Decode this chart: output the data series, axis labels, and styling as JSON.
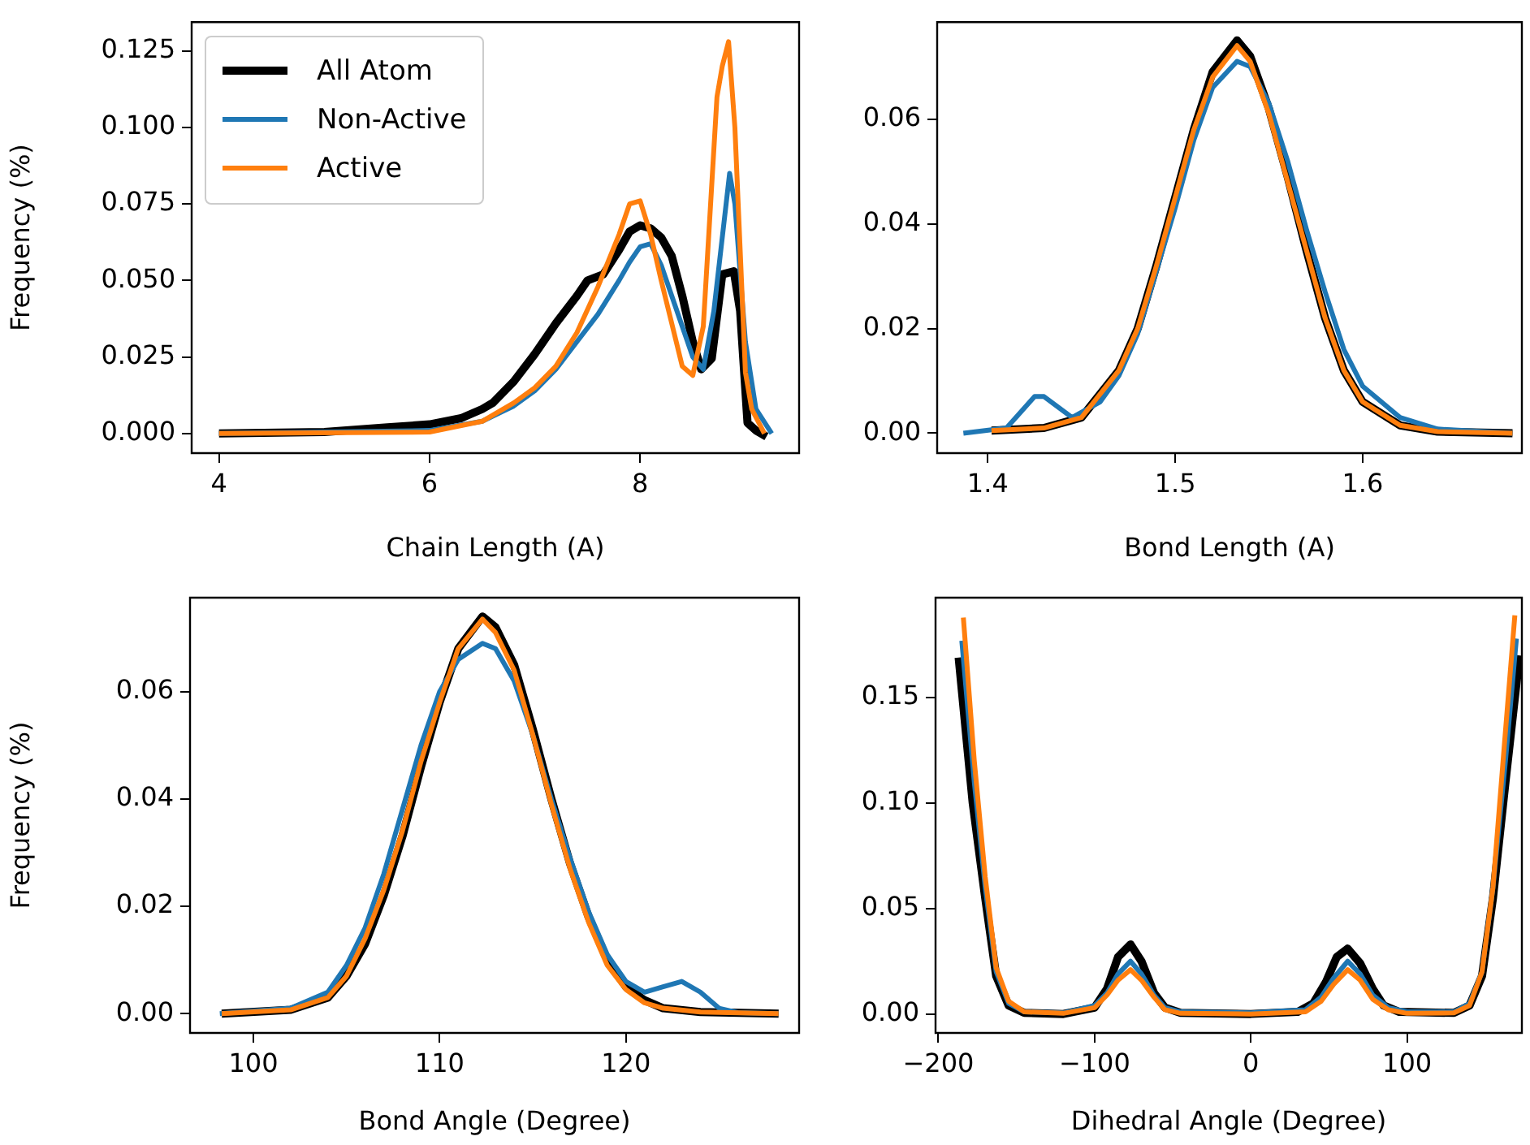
{
  "chart_data": [
    {
      "type": "line",
      "xlabel": "Chain Length (A)",
      "ylabel": "Frequency (%)",
      "legend": "top left",
      "xlim": [
        3.74,
        9.51
      ],
      "ylim": [
        -0.0064,
        0.1344
      ],
      "xticks": [
        4,
        6,
        8
      ],
      "yticks": [
        {
          "value": 0,
          "label": "0.000"
        },
        {
          "value": 0.025,
          "label": "0.025"
        },
        {
          "value": 0.05,
          "label": "0.050"
        },
        {
          "value": 0.075,
          "label": "0.075"
        },
        {
          "value": 0.1,
          "label": "0.100"
        },
        {
          "value": 0.125,
          "label": "0.125"
        }
      ],
      "series": [
        {
          "name": "All Atom",
          "color": "#000000",
          "x": [
            4,
            5,
            5.6,
            6,
            6.3,
            6.5,
            6.6,
            6.8,
            7,
            7.2,
            7.4,
            7.5,
            7.65,
            7.8,
            7.9,
            8,
            8.1,
            8.2,
            8.3,
            8.4,
            8.5,
            8.58,
            8.68,
            8.78,
            8.89,
            8.95,
            9.02,
            9.1,
            9.2
          ],
          "values": [
            0,
            0.0005,
            0.002,
            0.003,
            0.005,
            0.008,
            0.01,
            0.017,
            0.026,
            0.036,
            0.045,
            0.05,
            0.052,
            0.06,
            0.066,
            0.068,
            0.067,
            0.064,
            0.058,
            0.045,
            0.03,
            0.021,
            0.0245,
            0.052,
            0.053,
            0.04,
            0.0035,
            0.001,
            -0.001
          ]
        },
        {
          "name": "Non-Active",
          "color": "#1f77b4",
          "x": [
            4,
            6,
            6.5,
            6.8,
            7,
            7.2,
            7.4,
            7.6,
            7.8,
            7.9,
            8,
            8.1,
            8.2,
            8.3,
            8.4,
            8.5,
            8.6,
            8.7,
            8.8,
            8.85,
            8.9,
            9,
            9.1,
            9.25
          ],
          "values": [
            0,
            0.001,
            0.004,
            0.009,
            0.014,
            0.021,
            0.03,
            0.039,
            0.05,
            0.056,
            0.061,
            0.062,
            0.055,
            0.045,
            0.035,
            0.025,
            0.021,
            0.04,
            0.07,
            0.085,
            0.075,
            0.03,
            0.008,
            0
          ]
        },
        {
          "name": "Active",
          "color": "#ff7f0e",
          "x": [
            4,
            6,
            6.5,
            6.8,
            7,
            7.2,
            7.4,
            7.6,
            7.8,
            7.9,
            8,
            8.1,
            8.2,
            8.3,
            8.4,
            8.5,
            8.6,
            8.73,
            8.78,
            8.84,
            8.9,
            8.95,
            9,
            9.06,
            9.18
          ],
          "values": [
            0,
            0.0005,
            0.004,
            0.01,
            0.015,
            0.022,
            0.033,
            0.048,
            0.065,
            0.075,
            0.076,
            0.065,
            0.05,
            0.036,
            0.022,
            0.019,
            0.035,
            0.11,
            0.12,
            0.128,
            0.1,
            0.06,
            0.02,
            0.008,
            0
          ]
        }
      ]
    },
    {
      "type": "line",
      "xlabel": "Bond Length (A)",
      "xlim": [
        1.373,
        1.685
      ],
      "ylim": [
        -0.0038,
        0.0785
      ],
      "xticks": [
        1.4,
        1.5,
        1.6
      ],
      "yticks": [
        {
          "value": 0,
          "label": "0.00"
        },
        {
          "value": 0.02,
          "label": "0.02"
        },
        {
          "value": 0.04,
          "label": "0.04"
        },
        {
          "value": 0.06,
          "label": "0.06"
        }
      ],
      "series": [
        {
          "color": "#000000",
          "x": [
            1.402,
            1.43,
            1.45,
            1.47,
            1.48,
            1.49,
            1.5,
            1.51,
            1.52,
            1.533,
            1.54,
            1.55,
            1.56,
            1.57,
            1.58,
            1.59,
            1.6,
            1.62,
            1.64,
            1.68
          ],
          "values": [
            0.0005,
            0.001,
            0.003,
            0.012,
            0.02,
            0.032,
            0.045,
            0.058,
            0.069,
            0.075,
            0.072,
            0.062,
            0.049,
            0.035,
            0.022,
            0.012,
            0.006,
            0.0015,
            0.0003,
            0
          ]
        },
        {
          "color": "#1f77b4",
          "x": [
            1.387,
            1.41,
            1.425,
            1.43,
            1.445,
            1.46,
            1.47,
            1.48,
            1.49,
            1.5,
            1.51,
            1.52,
            1.533,
            1.54,
            1.55,
            1.56,
            1.57,
            1.58,
            1.59,
            1.6,
            1.62,
            1.64,
            1.68
          ],
          "values": [
            0,
            0.001,
            0.007,
            0.007,
            0.003,
            0.006,
            0.011,
            0.019,
            0.031,
            0.043,
            0.056,
            0.066,
            0.071,
            0.07,
            0.063,
            0.052,
            0.039,
            0.027,
            0.016,
            0.009,
            0.003,
            0.0008,
            0
          ]
        },
        {
          "color": "#ff7f0e",
          "x": [
            1.402,
            1.43,
            1.45,
            1.47,
            1.48,
            1.49,
            1.5,
            1.51,
            1.52,
            1.533,
            1.54,
            1.55,
            1.56,
            1.57,
            1.58,
            1.59,
            1.6,
            1.62,
            1.64,
            1.68
          ],
          "values": [
            0.0005,
            0.001,
            0.003,
            0.012,
            0.02,
            0.032,
            0.045,
            0.058,
            0.068,
            0.074,
            0.071,
            0.061,
            0.048,
            0.035,
            0.022,
            0.012,
            0.006,
            0.0015,
            0.0003,
            0
          ]
        }
      ]
    },
    {
      "type": "line",
      "xlabel": "Bond Angle (Degree)",
      "ylabel": "Frequency (%)",
      "xlim": [
        96.6,
        129.3
      ],
      "ylim": [
        -0.0036,
        0.0775
      ],
      "xticks": [
        100,
        110,
        120
      ],
      "yticks": [
        {
          "value": 0,
          "label": "0.00"
        },
        {
          "value": 0.02,
          "label": "0.02"
        },
        {
          "value": 0.04,
          "label": "0.04"
        },
        {
          "value": 0.06,
          "label": "0.06"
        }
      ],
      "series": [
        {
          "color": "#000000",
          "x": [
            98.3,
            102,
            104,
            105,
            106,
            107,
            108,
            109,
            110,
            111,
            112.3,
            113,
            114,
            115,
            116,
            117,
            118,
            119,
            120,
            121,
            122,
            124,
            128.2
          ],
          "values": [
            0,
            0.0007,
            0.003,
            0.007,
            0.013,
            0.022,
            0.033,
            0.046,
            0.058,
            0.068,
            0.074,
            0.072,
            0.065,
            0.053,
            0.04,
            0.028,
            0.018,
            0.01,
            0.005,
            0.0025,
            0.001,
            0.0003,
            0
          ]
        },
        {
          "color": "#1f77b4",
          "x": [
            98.2,
            102,
            104,
            105,
            106,
            107,
            108,
            109,
            110,
            111,
            112.3,
            113,
            114,
            115,
            116,
            117,
            118,
            119,
            120,
            121,
            122,
            123,
            124,
            125,
            126,
            128.2
          ],
          "values": [
            0,
            0.001,
            0.004,
            0.009,
            0.016,
            0.026,
            0.038,
            0.05,
            0.06,
            0.066,
            0.069,
            0.068,
            0.062,
            0.052,
            0.04,
            0.029,
            0.019,
            0.011,
            0.006,
            0.004,
            0.005,
            0.006,
            0.004,
            0.001,
            0.0002,
            0
          ]
        },
        {
          "color": "#ff7f0e",
          "x": [
            98.3,
            102,
            104,
            105,
            106,
            107,
            108,
            109,
            110,
            111,
            112.3,
            113,
            114,
            115,
            116,
            117,
            118,
            119,
            120,
            121,
            122,
            124,
            128.2
          ],
          "values": [
            0,
            0.0007,
            0.003,
            0.007,
            0.014,
            0.023,
            0.034,
            0.047,
            0.058,
            0.068,
            0.0735,
            0.071,
            0.064,
            0.052,
            0.039,
            0.027,
            0.017,
            0.009,
            0.0045,
            0.002,
            0.001,
            0.0003,
            0
          ]
        }
      ]
    },
    {
      "type": "line",
      "xlabel": "Dihedral Angle (Degree)",
      "xlim": [
        -201.8,
        173.5
      ],
      "ylim": [
        -0.009,
        0.1974
      ],
      "xticks": [
        {
          "value": -200,
          "label": "−200"
        },
        {
          "value": -100,
          "label": "−100"
        },
        0,
        100
      ],
      "yticks": [
        {
          "value": 0,
          "label": "0.00"
        },
        {
          "value": 0.05,
          "label": "0.05"
        },
        {
          "value": 0.1,
          "label": "0.10"
        },
        {
          "value": 0.15,
          "label": "0.15"
        }
      ],
      "series": [
        {
          "color": "#000000",
          "x": [
            -187,
            -178,
            -170,
            -163,
            -155,
            -145,
            -120,
            -100,
            -92,
            -85,
            -77,
            -70,
            -62,
            -55,
            -45,
            0,
            30,
            40,
            48,
            55,
            62,
            70,
            78,
            85,
            95,
            130,
            140,
            148,
            155,
            163,
            172
          ],
          "values": [
            0.169,
            0.1,
            0.055,
            0.018,
            0.004,
            0.0005,
            0,
            0.003,
            0.012,
            0.027,
            0.033,
            0.025,
            0.01,
            0.003,
            0.0005,
            0,
            0.001,
            0.005,
            0.015,
            0.027,
            0.031,
            0.024,
            0.012,
            0.004,
            0.001,
            0.0005,
            0.004,
            0.018,
            0.055,
            0.11,
            0.17
          ]
        },
        {
          "color": "#1f77b4",
          "x": [
            -185,
            -177,
            -170,
            -163,
            -155,
            -145,
            -120,
            -100,
            -92,
            -85,
            -77,
            -70,
            -62,
            -55,
            -45,
            0,
            35,
            45,
            53,
            62,
            70,
            78,
            88,
            100,
            130,
            140,
            148,
            155,
            163,
            170
          ],
          "values": [
            0.177,
            0.11,
            0.06,
            0.02,
            0.005,
            0.001,
            0.0005,
            0.004,
            0.01,
            0.019,
            0.025,
            0.019,
            0.009,
            0.003,
            0.001,
            0.0005,
            0.002,
            0.008,
            0.017,
            0.025,
            0.019,
            0.009,
            0.003,
            0.001,
            0.001,
            0.005,
            0.02,
            0.06,
            0.12,
            0.178
          ]
        },
        {
          "color": "#ff7f0e",
          "x": [
            -184,
            -177,
            -170,
            -163,
            -155,
            -145,
            -120,
            -100,
            -92,
            -85,
            -77,
            -70,
            -62,
            -55,
            -45,
            0,
            35,
            45,
            53,
            62,
            70,
            78,
            88,
            100,
            130,
            140,
            148,
            155,
            162,
            169
          ],
          "values": [
            0.188,
            0.12,
            0.065,
            0.022,
            0.006,
            0.001,
            0.0003,
            0.003,
            0.009,
            0.016,
            0.021,
            0.016,
            0.008,
            0.002,
            0.0003,
            0,
            0.001,
            0.006,
            0.014,
            0.021,
            0.016,
            0.007,
            0.002,
            0.0003,
            0.0005,
            0.004,
            0.02,
            0.06,
            0.125,
            0.189
          ]
        }
      ]
    }
  ]
}
